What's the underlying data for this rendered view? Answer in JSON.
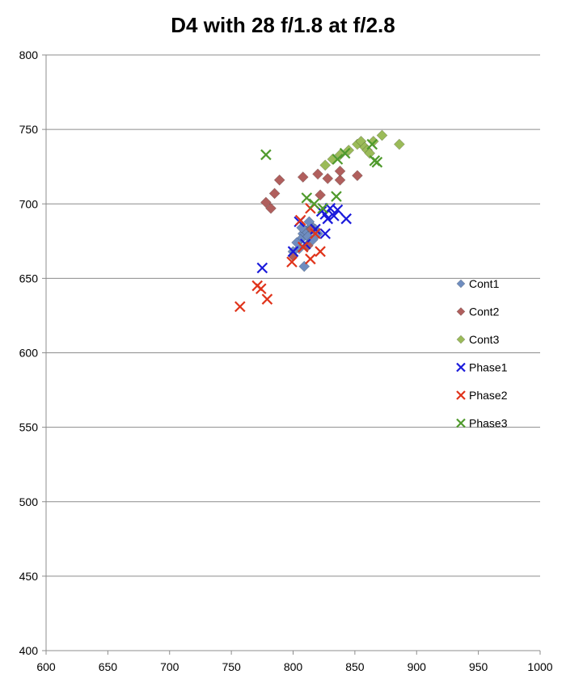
{
  "chart_data": {
    "type": "scatter",
    "title": "D4 with 28 f/1.8 at f/2.8",
    "xlabel": "",
    "ylabel": "",
    "xlim": [
      600,
      1000
    ],
    "ylim": [
      400,
      800
    ],
    "x_ticks": [
      600,
      650,
      700,
      750,
      800,
      850,
      900,
      950,
      1000
    ],
    "y_ticks": [
      400,
      450,
      500,
      550,
      600,
      650,
      700,
      750,
      800
    ],
    "grid": "horizontal",
    "legend_position": "right",
    "series": [
      {
        "name": "Cont1",
        "marker": "diamond",
        "color": "#6f8dc0",
        "points": [
          [
            808,
            680
          ],
          [
            810,
            682
          ],
          [
            812,
            678
          ],
          [
            815,
            685
          ],
          [
            818,
            683
          ],
          [
            806,
            676
          ],
          [
            811,
            672
          ],
          [
            809,
            658
          ],
          [
            805,
            670
          ],
          [
            813,
            688
          ],
          [
            820,
            680
          ],
          [
            816,
            676
          ],
          [
            807,
            684
          ],
          [
            803,
            674
          ],
          [
            800,
            668
          ]
        ]
      },
      {
        "name": "Cont2",
        "marker": "diamond",
        "color": "#b05f5d",
        "points": [
          [
            778,
            701
          ],
          [
            782,
            697
          ],
          [
            785,
            707
          ],
          [
            789,
            716
          ],
          [
            808,
            718
          ],
          [
            820,
            720
          ],
          [
            822,
            706
          ],
          [
            828,
            717
          ],
          [
            838,
            716
          ],
          [
            838,
            722
          ],
          [
            852,
            719
          ],
          [
            800,
            665
          ],
          [
            815,
            683
          ],
          [
            812,
            672
          ]
        ]
      },
      {
        "name": "Cont3",
        "marker": "diamond",
        "color": "#9bbb59",
        "points": [
          [
            826,
            726
          ],
          [
            832,
            730
          ],
          [
            838,
            733
          ],
          [
            845,
            736
          ],
          [
            852,
            740
          ],
          [
            855,
            742
          ],
          [
            858,
            738
          ],
          [
            860,
            736
          ],
          [
            862,
            734
          ],
          [
            865,
            742
          ],
          [
            872,
            746
          ],
          [
            886,
            740
          ]
        ]
      },
      {
        "name": "Phase1",
        "marker": "x",
        "color": "#1a1adb",
        "points": [
          [
            775,
            657
          ],
          [
            800,
            668
          ],
          [
            805,
            688
          ],
          [
            810,
            673
          ],
          [
            818,
            683
          ],
          [
            823,
            695
          ],
          [
            826,
            680
          ],
          [
            828,
            690
          ],
          [
            830,
            697
          ],
          [
            833,
            692
          ],
          [
            836,
            696
          ],
          [
            843,
            690
          ],
          [
            826,
            693
          ]
        ]
      },
      {
        "name": "Phase2",
        "marker": "x",
        "color": "#e0331a",
        "points": [
          [
            757,
            631
          ],
          [
            771,
            645
          ],
          [
            774,
            643
          ],
          [
            779,
            636
          ],
          [
            799,
            661
          ],
          [
            806,
            689
          ],
          [
            808,
            671
          ],
          [
            814,
            663
          ],
          [
            818,
            680
          ],
          [
            822,
            668
          ],
          [
            814,
            697
          ]
        ]
      },
      {
        "name": "Phase3",
        "marker": "x",
        "color": "#4f9a2c",
        "points": [
          [
            778,
            733
          ],
          [
            811,
            704
          ],
          [
            817,
            700
          ],
          [
            824,
            697
          ],
          [
            835,
            705
          ],
          [
            836,
            730
          ],
          [
            842,
            734
          ],
          [
            864,
            740
          ],
          [
            866,
            729
          ],
          [
            868,
            728
          ]
        ]
      }
    ]
  }
}
